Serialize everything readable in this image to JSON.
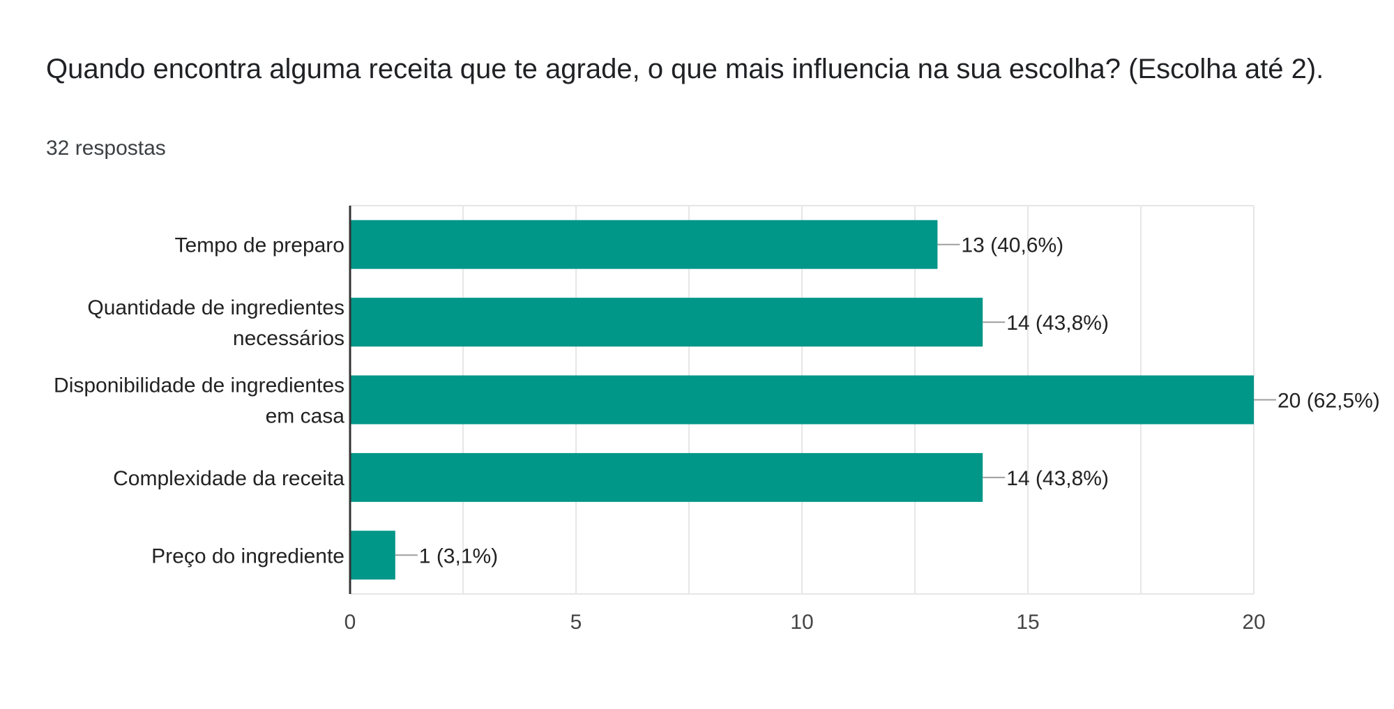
{
  "header": {
    "question": "Quando encontra alguma receita que te agrade, o que mais influencia na sua escolha? (Escolha até 2).",
    "responses": "32 respostas"
  },
  "colors": {
    "bar": "#009688",
    "grid": "#e6e6e6",
    "axis": "#333333",
    "leader": "#9e9e9e"
  },
  "chart_data": {
    "type": "bar",
    "orientation": "horizontal",
    "categories": [
      [
        "Tempo de preparo"
      ],
      [
        "Quantidade de ingredientes",
        "necessários"
      ],
      [
        "Disponibilidade de ingredientes",
        "em casa"
      ],
      [
        "Complexidade da receita"
      ],
      [
        "Preço do ingrediente"
      ]
    ],
    "values": [
      13,
      14,
      20,
      14,
      1
    ],
    "data_labels": [
      "13 (40,6%)",
      "14 (43,8%)",
      "20 (62,5%)",
      "14 (43,8%)",
      "1 (3,1%)"
    ],
    "xlim": [
      0,
      20
    ],
    "xticks": [
      0,
      5,
      10,
      15,
      20
    ],
    "grid": true,
    "legend": "none"
  }
}
